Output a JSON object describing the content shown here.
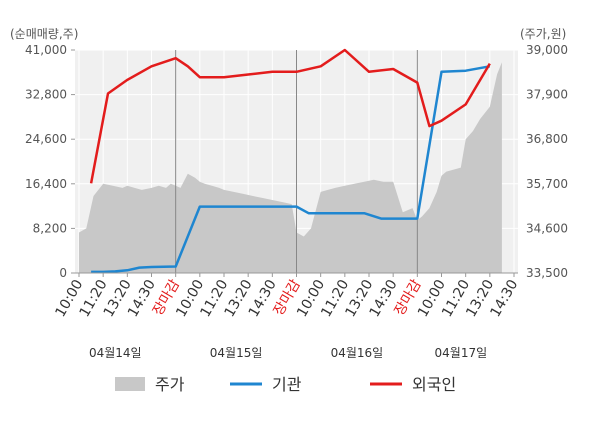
{
  "chart_data": {
    "type": "line",
    "left_unit": "(순매매량,주)",
    "right_unit": "(주가,원)",
    "left_ticks": [
      "0",
      "8,200",
      "16,400",
      "24,600",
      "32,800",
      "41,000"
    ],
    "right_ticks": [
      "33,500",
      "34,600",
      "35,700",
      "36,800",
      "37,900",
      "39,000"
    ],
    "left_range": [
      0,
      41000
    ],
    "right_range": [
      33500,
      39000
    ],
    "x_tick_labels": [
      "10:00",
      "11:20",
      "13:20",
      "14:30",
      "장마감",
      "10:00",
      "11:20",
      "13:20",
      "14:30",
      "장마감",
      "10:00",
      "11:20",
      "13:20",
      "14:30",
      "장마감",
      "10:00",
      "11:20",
      "13:20",
      "14:30"
    ],
    "close_label": "장마감",
    "dates": [
      "04월14일",
      "04월15일",
      "04월16일",
      "04월17일"
    ],
    "legend": [
      {
        "label": "주가",
        "color": "#c8c8c8"
      },
      {
        "label": "기관",
        "color": "#1f86d0"
      },
      {
        "label": "외국인",
        "color": "#e31c1c"
      }
    ],
    "price_series": {
      "x": [
        0,
        0.3,
        0.6,
        1.0,
        1.4,
        1.8,
        2.0,
        2.3,
        2.6,
        3.0,
        3.3,
        3.6,
        3.8,
        4.0,
        4.2,
        4.5,
        4.8,
        5.0,
        5.2,
        5.5,
        5.8,
        6.0,
        6.4,
        6.8,
        7.2,
        7.6,
        8.0,
        8.4,
        8.8,
        9.0,
        9.3,
        9.6,
        10.0,
        10.3,
        10.6,
        11.0,
        11.4,
        11.8,
        12.2,
        12.6,
        13.0,
        13.4,
        13.8,
        14.0,
        14.2,
        14.5,
        14.8,
        15.0,
        15.2,
        15.5,
        15.8,
        16.0,
        16.3,
        16.6,
        17.0,
        17.3,
        17.5
      ],
      "y": [
        34500,
        34600,
        35400,
        35700,
        35650,
        35600,
        35650,
        35600,
        35550,
        35600,
        35650,
        35600,
        35700,
        35650,
        35600,
        35950,
        35850,
        35750,
        35700,
        35650,
        35600,
        35550,
        35500,
        35450,
        35400,
        35350,
        35300,
        35250,
        35200,
        34500,
        34400,
        34600,
        35500,
        35550,
        35600,
        35650,
        35700,
        35750,
        35800,
        35750,
        35750,
        35000,
        35100,
        34800,
        34900,
        35100,
        35500,
        35900,
        36000,
        36050,
        36100,
        36800,
        37000,
        37300,
        37600,
        38400,
        38700
      ]
    },
    "institution": {
      "x": [
        0.5,
        1.0,
        1.5,
        2.0,
        2.5,
        3.0,
        4.0,
        5.0,
        5.5,
        6.0,
        7.0,
        8.0,
        9.0,
        9.5,
        10.0,
        11.0,
        11.8,
        12.5,
        13.0,
        14.0,
        15.0,
        16.0,
        17.0
      ],
      "y": [
        200,
        200,
        300,
        500,
        1000,
        1100,
        1200,
        12200,
        12200,
        12200,
        12200,
        12200,
        12200,
        11000,
        11000,
        11000,
        11000,
        10000,
        10000,
        10000,
        37000,
        37200,
        38000
      ]
    },
    "foreign": {
      "x": [
        0.5,
        1.2,
        2.0,
        3.0,
        4.0,
        4.5,
        5.0,
        6.0,
        7.0,
        8.0,
        9.0,
        10.0,
        11.0,
        12.0,
        13.0,
        14.0,
        14.5,
        15.0,
        16.0,
        17.0
      ],
      "y": [
        16500,
        33000,
        35500,
        38000,
        39500,
        38000,
        36000,
        36000,
        36500,
        37000,
        37000,
        38000,
        41000,
        37000,
        37500,
        35000,
        27000,
        28000,
        31000,
        38500
      ]
    }
  }
}
